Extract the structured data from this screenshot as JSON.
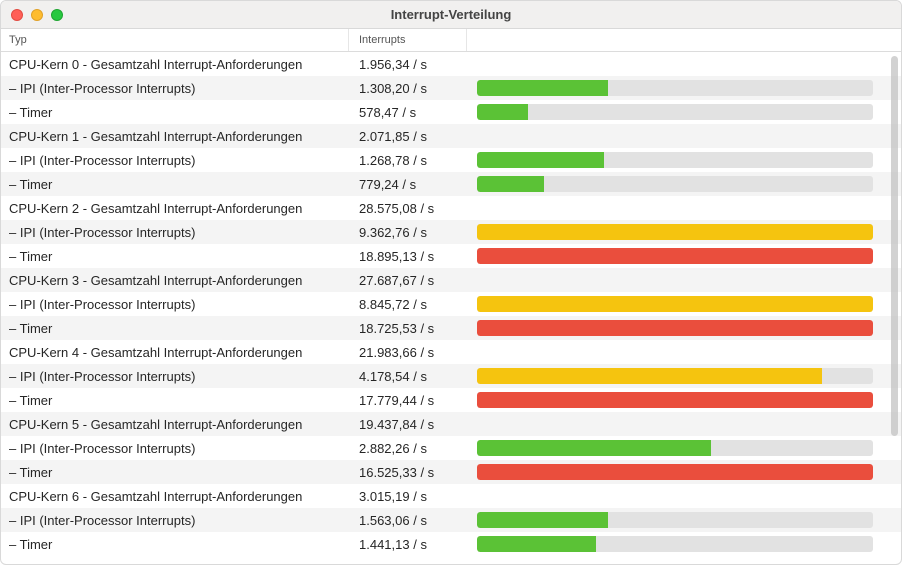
{
  "window": {
    "title": "Interrupt-Verteilung"
  },
  "columns": {
    "typ": "Typ",
    "interrupts": "Interrupts"
  },
  "colors": {
    "green": "#5bc236",
    "yellow": "#f5c40f",
    "red": "#ea4e3d",
    "track": "#e2e2e2",
    "alt_row": "#f4f4f4"
  },
  "rows": [
    {
      "typ": "CPU-Kern 0 - Gesamtzahl Interrupt-Anforderungen",
      "interrupts": "1.956,34 / s",
      "bar": null
    },
    {
      "typ": "– IPI (Inter-Processor Interrupts)",
      "interrupts": "1.308,20 / s",
      "bar": {
        "pct": 33,
        "color": "#5bc236"
      }
    },
    {
      "typ": "– Timer",
      "interrupts": "578,47 / s",
      "bar": {
        "pct": 13,
        "color": "#5bc236"
      }
    },
    {
      "typ": "CPU-Kern 1 - Gesamtzahl Interrupt-Anforderungen",
      "interrupts": "2.071,85 / s",
      "bar": null
    },
    {
      "typ": "– IPI (Inter-Processor Interrupts)",
      "interrupts": "1.268,78 / s",
      "bar": {
        "pct": 32,
        "color": "#5bc236"
      }
    },
    {
      "typ": "– Timer",
      "interrupts": "779,24 / s",
      "bar": {
        "pct": 17,
        "color": "#5bc236"
      }
    },
    {
      "typ": "CPU-Kern 2 - Gesamtzahl Interrupt-Anforderungen",
      "interrupts": "28.575,08 / s",
      "bar": null
    },
    {
      "typ": "– IPI (Inter-Processor Interrupts)",
      "interrupts": "9.362,76 / s",
      "bar": {
        "pct": 100,
        "color": "#f5c40f"
      }
    },
    {
      "typ": "– Timer",
      "interrupts": "18.895,13 / s",
      "bar": {
        "pct": 100,
        "color": "#ea4e3d"
      }
    },
    {
      "typ": "CPU-Kern 3 - Gesamtzahl Interrupt-Anforderungen",
      "interrupts": "27.687,67 / s",
      "bar": null
    },
    {
      "typ": "– IPI (Inter-Processor Interrupts)",
      "interrupts": "8.845,72 / s",
      "bar": {
        "pct": 100,
        "color": "#f5c40f"
      }
    },
    {
      "typ": "– Timer",
      "interrupts": "18.725,53 / s",
      "bar": {
        "pct": 100,
        "color": "#ea4e3d"
      }
    },
    {
      "typ": "CPU-Kern 4 - Gesamtzahl Interrupt-Anforderungen",
      "interrupts": "21.983,66 / s",
      "bar": null
    },
    {
      "typ": "– IPI (Inter-Processor Interrupts)",
      "interrupts": "4.178,54 / s",
      "bar": {
        "pct": 87,
        "color": "#f5c40f"
      }
    },
    {
      "typ": "– Timer",
      "interrupts": "17.779,44 / s",
      "bar": {
        "pct": 100,
        "color": "#ea4e3d"
      }
    },
    {
      "typ": "CPU-Kern 5 - Gesamtzahl Interrupt-Anforderungen",
      "interrupts": "19.437,84 / s",
      "bar": null
    },
    {
      "typ": "– IPI (Inter-Processor Interrupts)",
      "interrupts": "2.882,26 / s",
      "bar": {
        "pct": 59,
        "color": "#5bc236"
      }
    },
    {
      "typ": "– Timer",
      "interrupts": "16.525,33 / s",
      "bar": {
        "pct": 100,
        "color": "#ea4e3d"
      }
    },
    {
      "typ": "CPU-Kern 6 - Gesamtzahl Interrupt-Anforderungen",
      "interrupts": "3.015,19 / s",
      "bar": null
    },
    {
      "typ": "– IPI (Inter-Processor Interrupts)",
      "interrupts": "1.563,06 / s",
      "bar": {
        "pct": 33,
        "color": "#5bc236"
      }
    },
    {
      "typ": "– Timer",
      "interrupts": "1.441,13 / s",
      "bar": {
        "pct": 30,
        "color": "#5bc236"
      }
    }
  ]
}
